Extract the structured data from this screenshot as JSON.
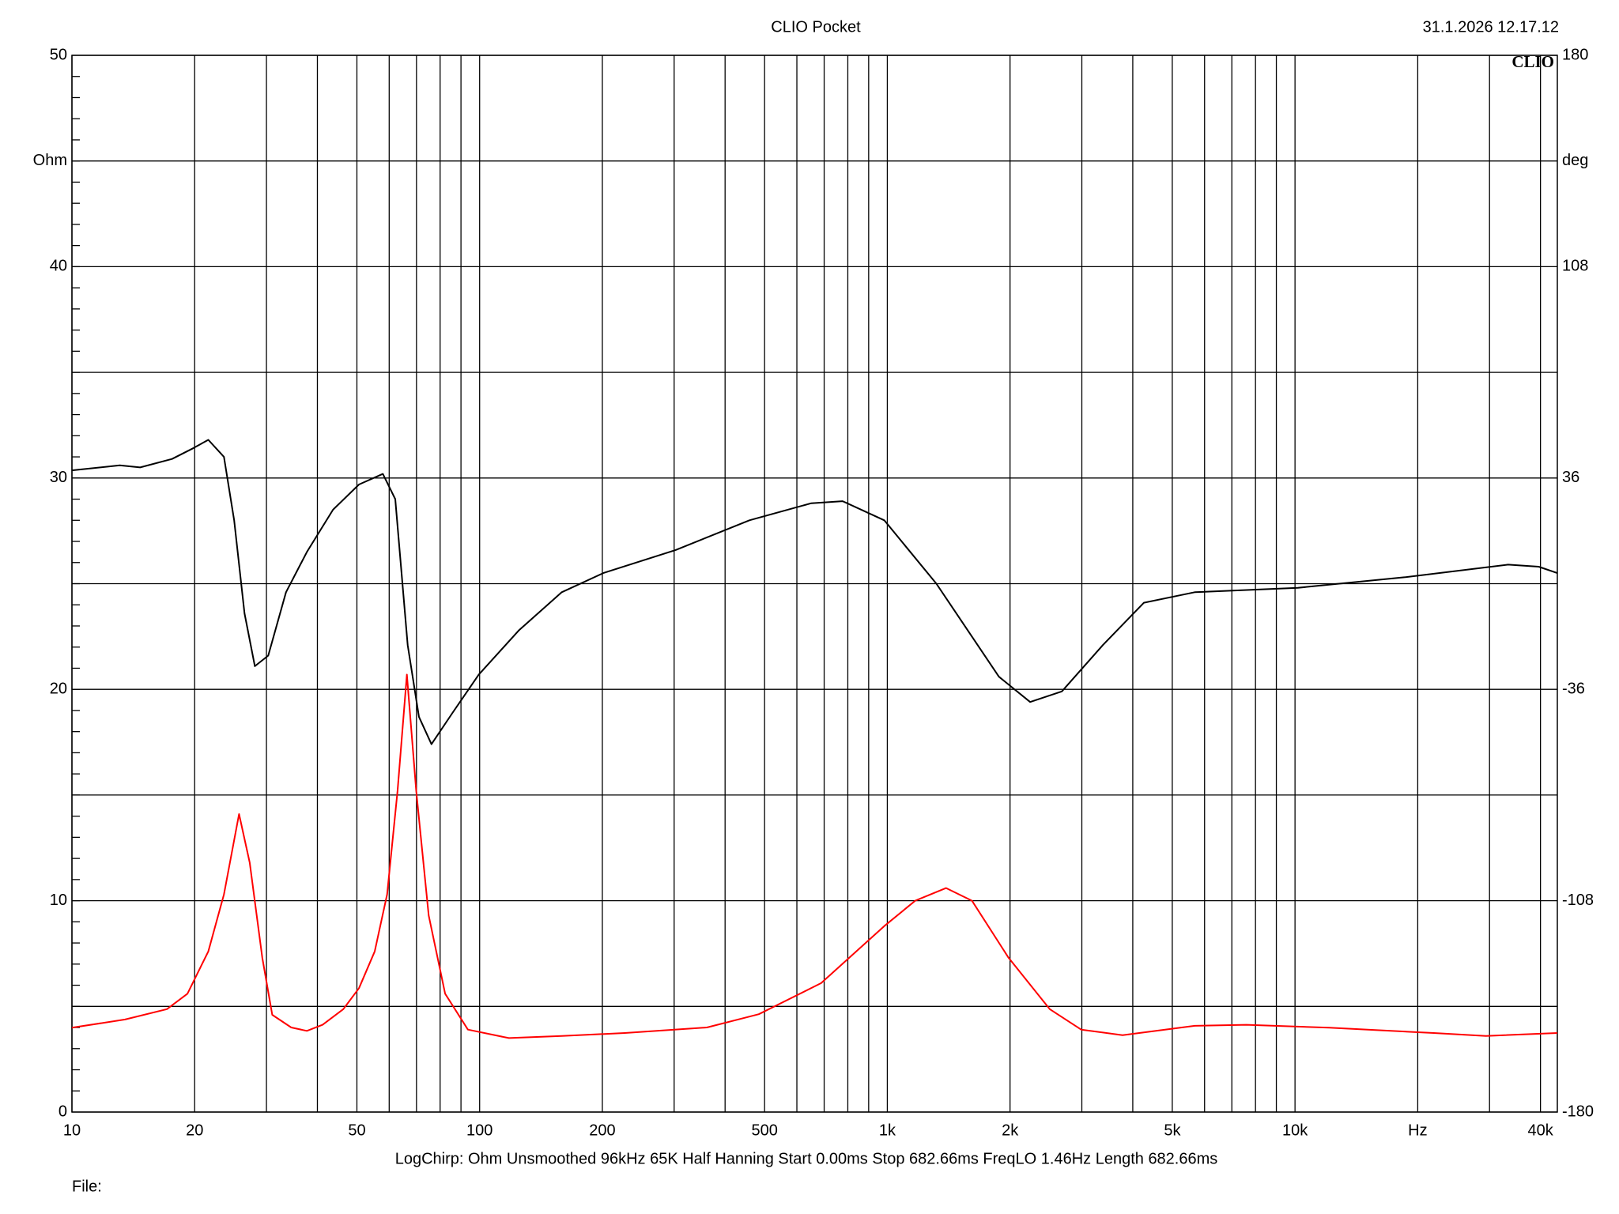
{
  "chart_data": {
    "type": "line",
    "title": "CLIO Pocket",
    "date": "31.1.2026 12.17.12",
    "logo": "CLIO",
    "footer": "LogChirp:  Ohm   Unsmoothed   96kHz   65K   Half Hanning   Start 0.00ms    Stop 682.66ms    FreqLO 1.46Hz    Length 682.66ms",
    "file_label": "File:",
    "ylabel": "Ohm",
    "y2label": "deg",
    "xscale": "log",
    "grid": true,
    "xlim": [
      10,
      44000
    ],
    "xticks": [
      10,
      20,
      50,
      100,
      200,
      500,
      {
        "value": 1000,
        "label": "1k"
      },
      {
        "value": 2000,
        "label": "2k"
      },
      {
        "value": 5000,
        "label": "5k"
      },
      {
        "value": 10000,
        "label": "10k"
      },
      {
        "value": 20000,
        "label": "Hz"
      },
      {
        "value": 40000,
        "label": "40k"
      }
    ],
    "xgrid": [
      30,
      40,
      60,
      70,
      80,
      90,
      300,
      400,
      600,
      700,
      800,
      900,
      3000,
      4000,
      6000,
      7000,
      8000,
      9000,
      30000
    ],
    "ylim": [
      0,
      50
    ],
    "yticks": [
      0,
      10,
      20,
      30,
      40,
      50
    ],
    "ygrid": [
      5,
      15,
      25,
      35,
      45
    ],
    "y2lim": [
      -180,
      180
    ],
    "y2ticks": [
      -180,
      -108,
      -36,
      36,
      108,
      180
    ],
    "series": [
      {
        "color": "#ff0000",
        "x": [
          10,
          13.5,
          17.1,
          19.2,
          21.6,
          23.6,
          25.7,
          27.3,
          29.3,
          31.0,
          34.5,
          37.7,
          41.2,
          46.3,
          50.6,
          55.3,
          59.3,
          62.9,
          66.3,
          69.9,
          75.0,
          82.3,
          93.6,
          118,
          159,
          227,
          361,
          484,
          688,
          983,
          1171,
          1394,
          1613,
          1983,
          2503,
          2989,
          3776,
          5676,
          7600,
          12130,
          21900,
          29400,
          44000
        ],
        "values": [
          3.99,
          4.38,
          4.87,
          5.6,
          7.6,
          10.3,
          14.1,
          11.8,
          7.3,
          4.6,
          4.0,
          3.84,
          4.13,
          4.87,
          5.86,
          7.6,
          10.3,
          15.2,
          20.7,
          15.2,
          9.3,
          5.6,
          3.9,
          3.5,
          3.6,
          3.74,
          4.0,
          4.63,
          6.1,
          8.8,
          10.0,
          10.6,
          10.0,
          7.3,
          4.87,
          3.9,
          3.64,
          4.08,
          4.13,
          3.99,
          3.74,
          3.6,
          3.74
        ]
      },
      {
        "color": "#000000",
        "axis": "y2",
        "x": [
          10,
          13.1,
          14.7,
          17.6,
          19.8,
          21.6,
          23.6,
          25.0,
          26.5,
          28.1,
          30.3,
          33.5,
          37.7,
          43.7,
          50.6,
          57.9,
          62.1,
          66.6,
          71.0,
          76.2,
          85.9,
          99.5,
          125,
          159,
          201,
          303,
          459,
          651,
          777,
          983,
          1319,
          1878,
          2240,
          2680,
          3380,
          4260,
          5676,
          10160,
          18640,
          33300,
          39600,
          44000
        ],
        "values": [
          38.6,
          40.3,
          39.6,
          42.5,
          46.1,
          49,
          43.2,
          21.6,
          -10.1,
          -28.1,
          -24.5,
          -2.9,
          10.8,
          25.2,
          33.8,
          37.4,
          28.8,
          -20.9,
          -45.4,
          -54.7,
          -43.9,
          -31.0,
          -15.8,
          -2.9,
          3.6,
          11.5,
          21.6,
          27.4,
          28.1,
          21.6,
          0,
          -31.7,
          -40.3,
          -36.7,
          -20.9,
          -6.5,
          -2.9,
          -1.4,
          2.2,
          6.5,
          5.8,
          3.6
        ]
      }
    ]
  }
}
